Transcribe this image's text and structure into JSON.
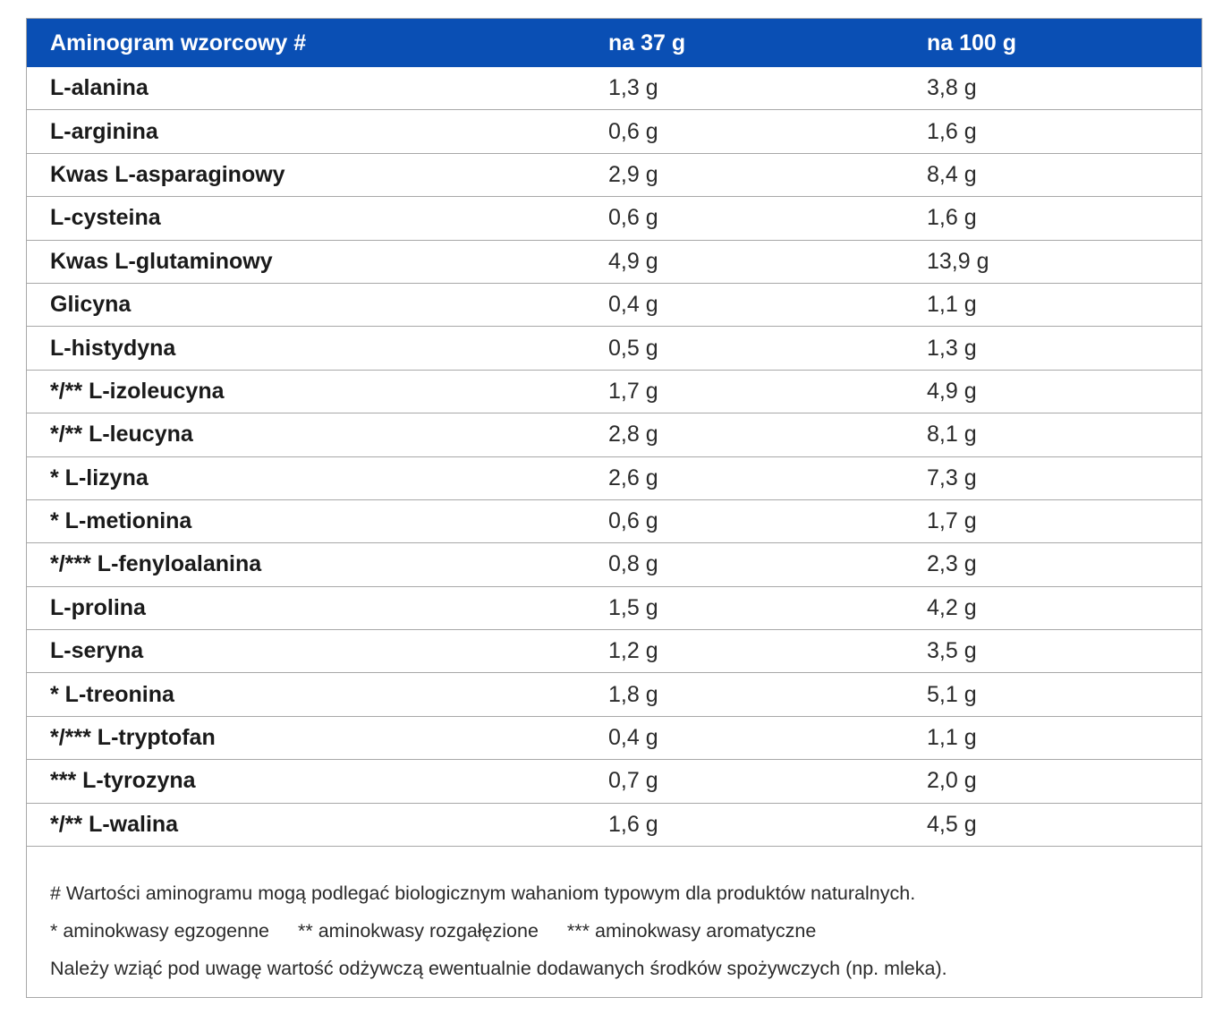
{
  "table": {
    "header": {
      "col1": "Aminogram wzorcowy #",
      "col2": "na 37 g",
      "col3": "na 100 g"
    },
    "rows": [
      {
        "name": "L-alanina",
        "per37": "1,3 g",
        "per100": "3,8 g"
      },
      {
        "name": "L-arginina",
        "per37": "0,6 g",
        "per100": "1,6 g"
      },
      {
        "name": "Kwas L-asparaginowy",
        "per37": "2,9 g",
        "per100": "8,4 g"
      },
      {
        "name": "L-cysteina",
        "per37": "0,6 g",
        "per100": "1,6 g"
      },
      {
        "name": "Kwas L-glutaminowy",
        "per37": "4,9 g",
        "per100": "13,9 g"
      },
      {
        "name": "Glicyna",
        "per37": "0,4 g",
        "per100": "1,1 g"
      },
      {
        "name": "L-histydyna",
        "per37": "0,5 g",
        "per100": "1,3 g"
      },
      {
        "name": "*/** L-izoleucyna",
        "per37": "1,7 g",
        "per100": "4,9 g"
      },
      {
        "name": "*/** L-leucyna",
        "per37": "2,8 g",
        "per100": "8,1 g"
      },
      {
        "name": "* L-lizyna",
        "per37": "2,6 g",
        "per100": "7,3 g"
      },
      {
        "name": "* L-metionina",
        "per37": "0,6 g",
        "per100": "1,7 g"
      },
      {
        "name": "*/*** L-fenyloalanina",
        "per37": "0,8 g",
        "per100": "2,3 g"
      },
      {
        "name": "L-prolina",
        "per37": "1,5 g",
        "per100": "4,2 g"
      },
      {
        "name": "L-seryna",
        "per37": "1,2 g",
        "per100": "3,5 g"
      },
      {
        "name": "* L-treonina",
        "per37": "1,8 g",
        "per100": "5,1 g"
      },
      {
        "name": "*/*** L-tryptofan",
        "per37": "0,4 g",
        "per100": "1,1 g"
      },
      {
        "name": "*** L-tyrozyna",
        "per37": "0,7 g",
        "per100": "2,0 g"
      },
      {
        "name": "*/** L-walina",
        "per37": "1,6 g",
        "per100": "4,5 g"
      }
    ]
  },
  "notes": {
    "variation": "# Wartości aminogramu mogą podlegać biologicznym wahaniom typowym dla produktów naturalnych.",
    "legend": [
      "* aminokwasy egzogenne",
      "** aminokwasy rozgałęzione",
      "*** aminokwasy aromatyczne"
    ],
    "additional": "Należy wziąć pod uwagę wartość odżywczą ewentualnie dodawanych środków spożywczych (np. mleka)."
  },
  "colors": {
    "header_background": "#0a4fb4",
    "header_text": "#ffffff",
    "row_divider": "#a8a8a8"
  }
}
